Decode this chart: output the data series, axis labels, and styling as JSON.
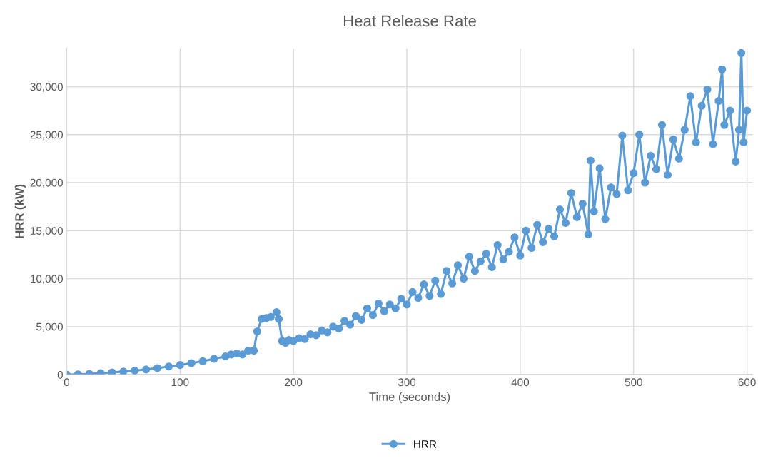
{
  "chart_data": {
    "type": "line",
    "title": "Heat Release Rate",
    "xlabel": "Time (seconds)",
    "ylabel": "HRR (kW)",
    "xlim": [
      0,
      605
    ],
    "xticks": [
      0,
      100,
      200,
      300,
      400,
      500,
      600
    ],
    "ylim": [
      0,
      34000
    ],
    "yticks": [
      0,
      {
        "value": 5000,
        "label": "5,000"
      },
      {
        "value": 10000,
        "label": "10,000"
      },
      {
        "value": 15000,
        "label": "15,000"
      },
      {
        "value": 20000,
        "label": "20,000"
      },
      {
        "value": 25000,
        "label": "25,000"
      },
      {
        "value": 30000,
        "label": "30,000"
      }
    ],
    "grid": true,
    "legend": "bottom",
    "marker": "circle",
    "line_style": "solid",
    "series": [
      {
        "name": "HRR",
        "color": "#5b9bd5",
        "x": [
          0,
          10,
          20,
          30,
          40,
          50,
          60,
          70,
          80,
          90,
          100,
          110,
          120,
          130,
          140,
          145,
          150,
          155,
          160,
          165,
          168,
          172,
          176,
          180,
          185,
          187,
          190,
          193,
          196,
          200,
          205,
          210,
          215,
          220,
          225,
          230,
          235,
          240,
          245,
          250,
          255,
          260,
          265,
          270,
          275,
          280,
          285,
          290,
          295,
          300,
          305,
          310,
          315,
          320,
          325,
          330,
          335,
          340,
          345,
          350,
          355,
          360,
          365,
          370,
          375,
          380,
          385,
          390,
          395,
          400,
          405,
          410,
          415,
          420,
          425,
          430,
          435,
          440,
          445,
          450,
          455,
          460,
          462,
          465,
          470,
          475,
          480,
          485,
          490,
          495,
          500,
          505,
          510,
          515,
          520,
          525,
          530,
          535,
          540,
          545,
          550,
          555,
          560,
          565,
          570,
          575,
          578,
          580,
          585,
          590,
          593,
          595,
          597,
          600
        ],
        "values": [
          0,
          30,
          80,
          150,
          230,
          320,
          420,
          540,
          680,
          840,
          1000,
          1200,
          1400,
          1650,
          1900,
          2100,
          2200,
          2100,
          2500,
          2500,
          4500,
          5800,
          5900,
          6000,
          6500,
          5800,
          3500,
          3300,
          3600,
          3500,
          3800,
          3700,
          4200,
          4100,
          4600,
          4400,
          5000,
          4800,
          5600,
          5200,
          6100,
          5700,
          6900,
          6200,
          7400,
          6600,
          7300,
          6900,
          7900,
          7300,
          8600,
          8000,
          9400,
          8200,
          9800,
          8400,
          10800,
          9500,
          11400,
          10000,
          12300,
          10800,
          11800,
          12600,
          11200,
          13500,
          12000,
          12800,
          14300,
          12400,
          15000,
          13200,
          15600,
          13800,
          15200,
          14400,
          17200,
          15800,
          18900,
          16400,
          17800,
          14600,
          22300,
          17000,
          21500,
          16200,
          19500,
          18800,
          24900,
          19200,
          21000,
          25000,
          20000,
          22800,
          21400,
          26000,
          20800,
          24500,
          22500,
          25500,
          29000,
          24200,
          28000,
          29700,
          24000,
          28500,
          31800,
          26000,
          27500,
          22200,
          25500,
          33500,
          24200,
          27500
        ]
      }
    ]
  }
}
